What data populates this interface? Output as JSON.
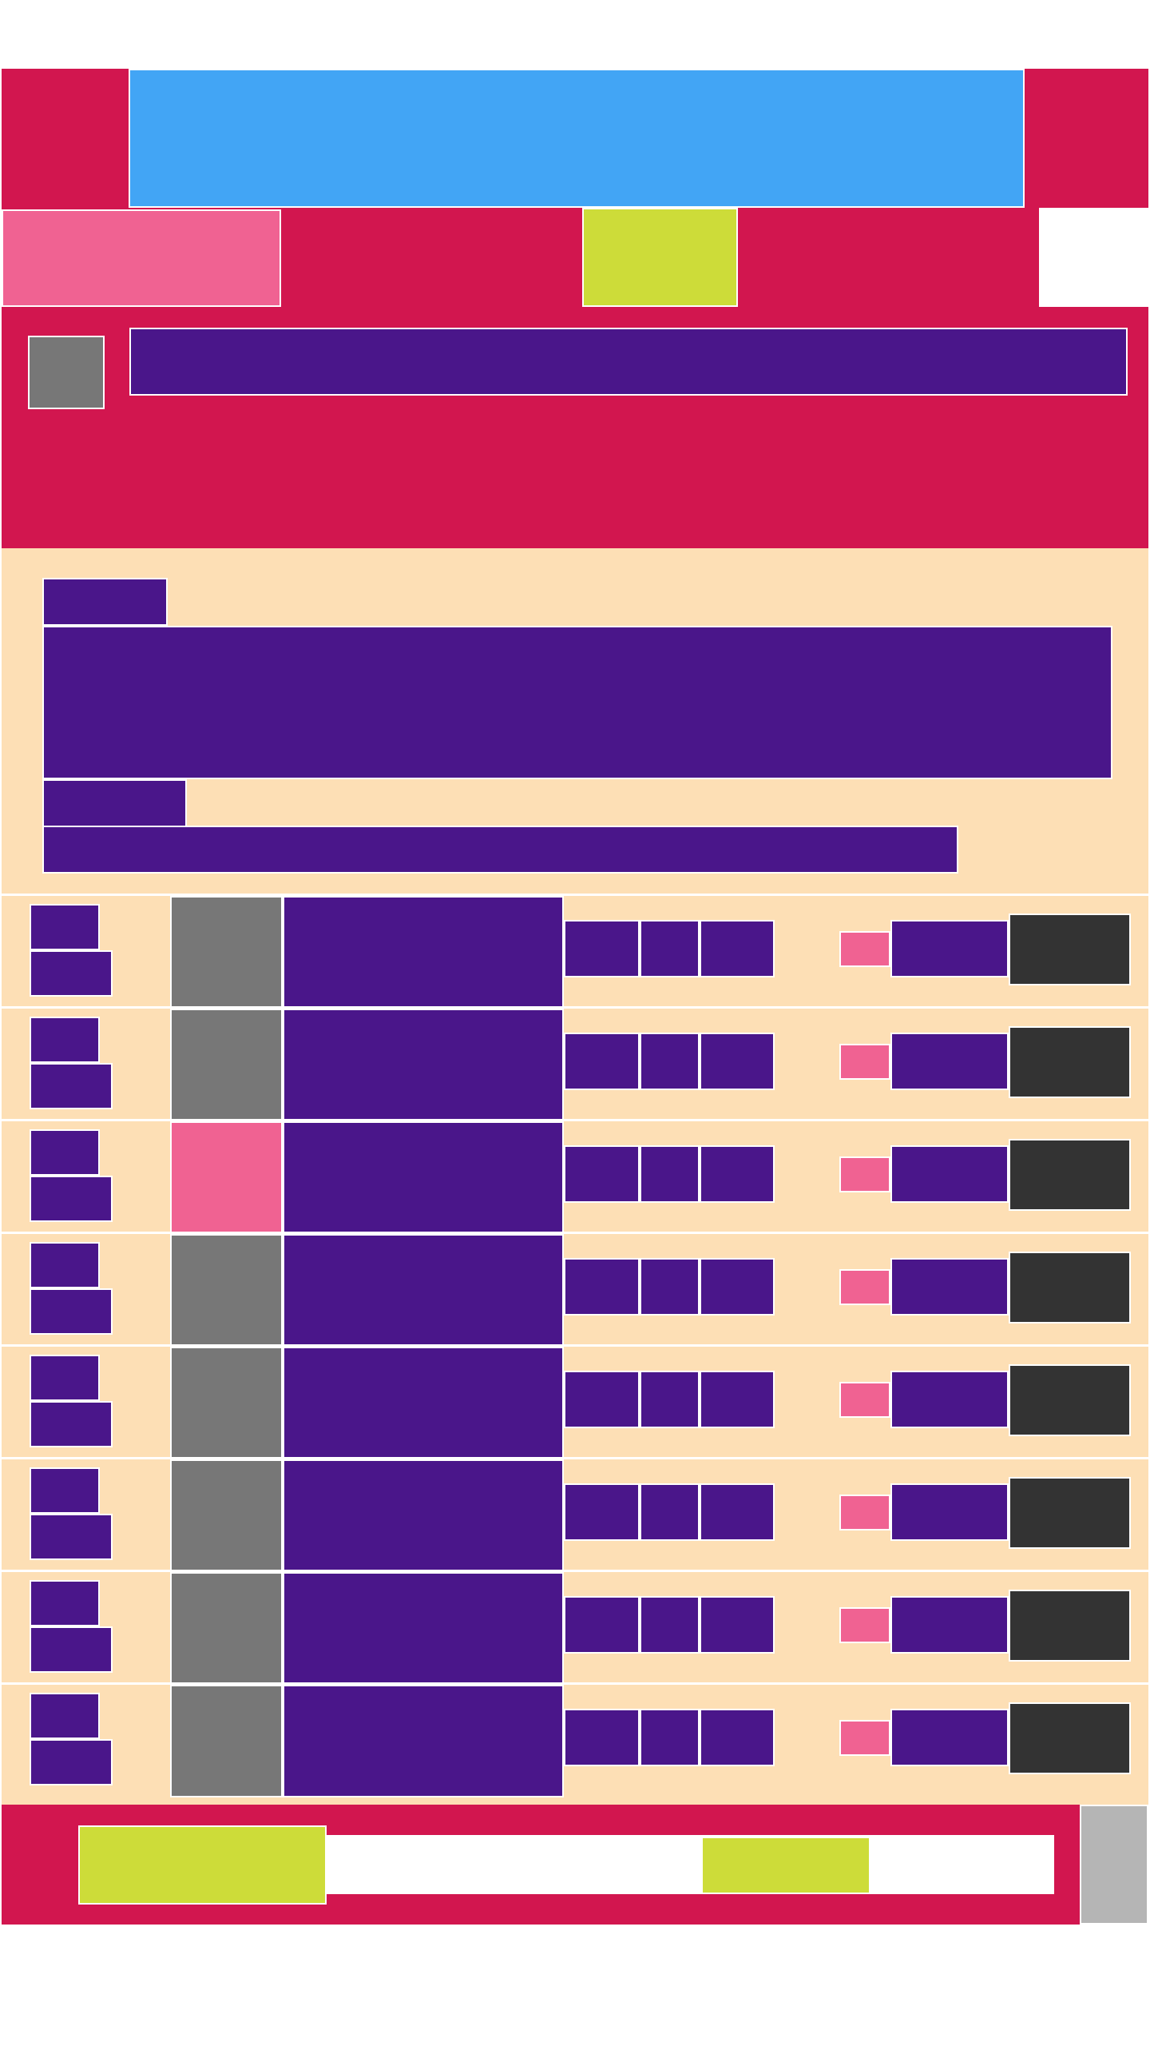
{
  "header": {
    "title": "",
    "logo": {
      "icon": "square-icon"
    }
  },
  "tabs": [
    {
      "label": ""
    },
    {
      "label": ""
    },
    {
      "label": ""
    }
  ],
  "search": {
    "placeholder": "",
    "value": ""
  },
  "hero": {
    "eyebrow": "",
    "headline": "",
    "subheading": "",
    "description": ""
  },
  "rows": [
    {
      "meta1": "",
      "meta2": "",
      "name": "",
      "a": "",
      "b": "",
      "c": "",
      "chip": "",
      "value": "",
      "action": "",
      "thumb_color": "#777777"
    },
    {
      "meta1": "",
      "meta2": "",
      "name": "",
      "a": "",
      "b": "",
      "c": "",
      "chip": "",
      "value": "",
      "action": "",
      "thumb_color": "#777777"
    },
    {
      "meta1": "",
      "meta2": "",
      "name": "",
      "a": "",
      "b": "",
      "c": "",
      "chip": "",
      "value": "",
      "action": "",
      "thumb_color": "#f06292"
    },
    {
      "meta1": "",
      "meta2": "",
      "name": "",
      "a": "",
      "b": "",
      "c": "",
      "chip": "",
      "value": "",
      "action": "",
      "thumb_color": "#777777"
    },
    {
      "meta1": "",
      "meta2": "",
      "name": "",
      "a": "",
      "b": "",
      "c": "",
      "chip": "",
      "value": "",
      "action": "",
      "thumb_color": "#777777"
    },
    {
      "meta1": "",
      "meta2": "",
      "name": "",
      "a": "",
      "b": "",
      "c": "",
      "chip": "",
      "value": "",
      "action": "",
      "thumb_color": "#777777"
    },
    {
      "meta1": "",
      "meta2": "",
      "name": "",
      "a": "",
      "b": "",
      "c": "",
      "chip": "",
      "value": "",
      "action": "",
      "thumb_color": "#777777"
    },
    {
      "meta1": "",
      "meta2": "",
      "name": "",
      "a": "",
      "b": "",
      "c": "",
      "chip": "",
      "value": "",
      "action": "",
      "thumb_color": "#777777"
    }
  ],
  "footer": {
    "primary_label": "",
    "secondary_label": ""
  },
  "colors": {
    "crimson": "#d2164f",
    "blue": "#42a5f5",
    "pink": "#f06292",
    "lime": "#cddc39",
    "purple": "#4a168a",
    "cream": "#fddfb5",
    "dark": "#333333",
    "gray": "#777777"
  }
}
